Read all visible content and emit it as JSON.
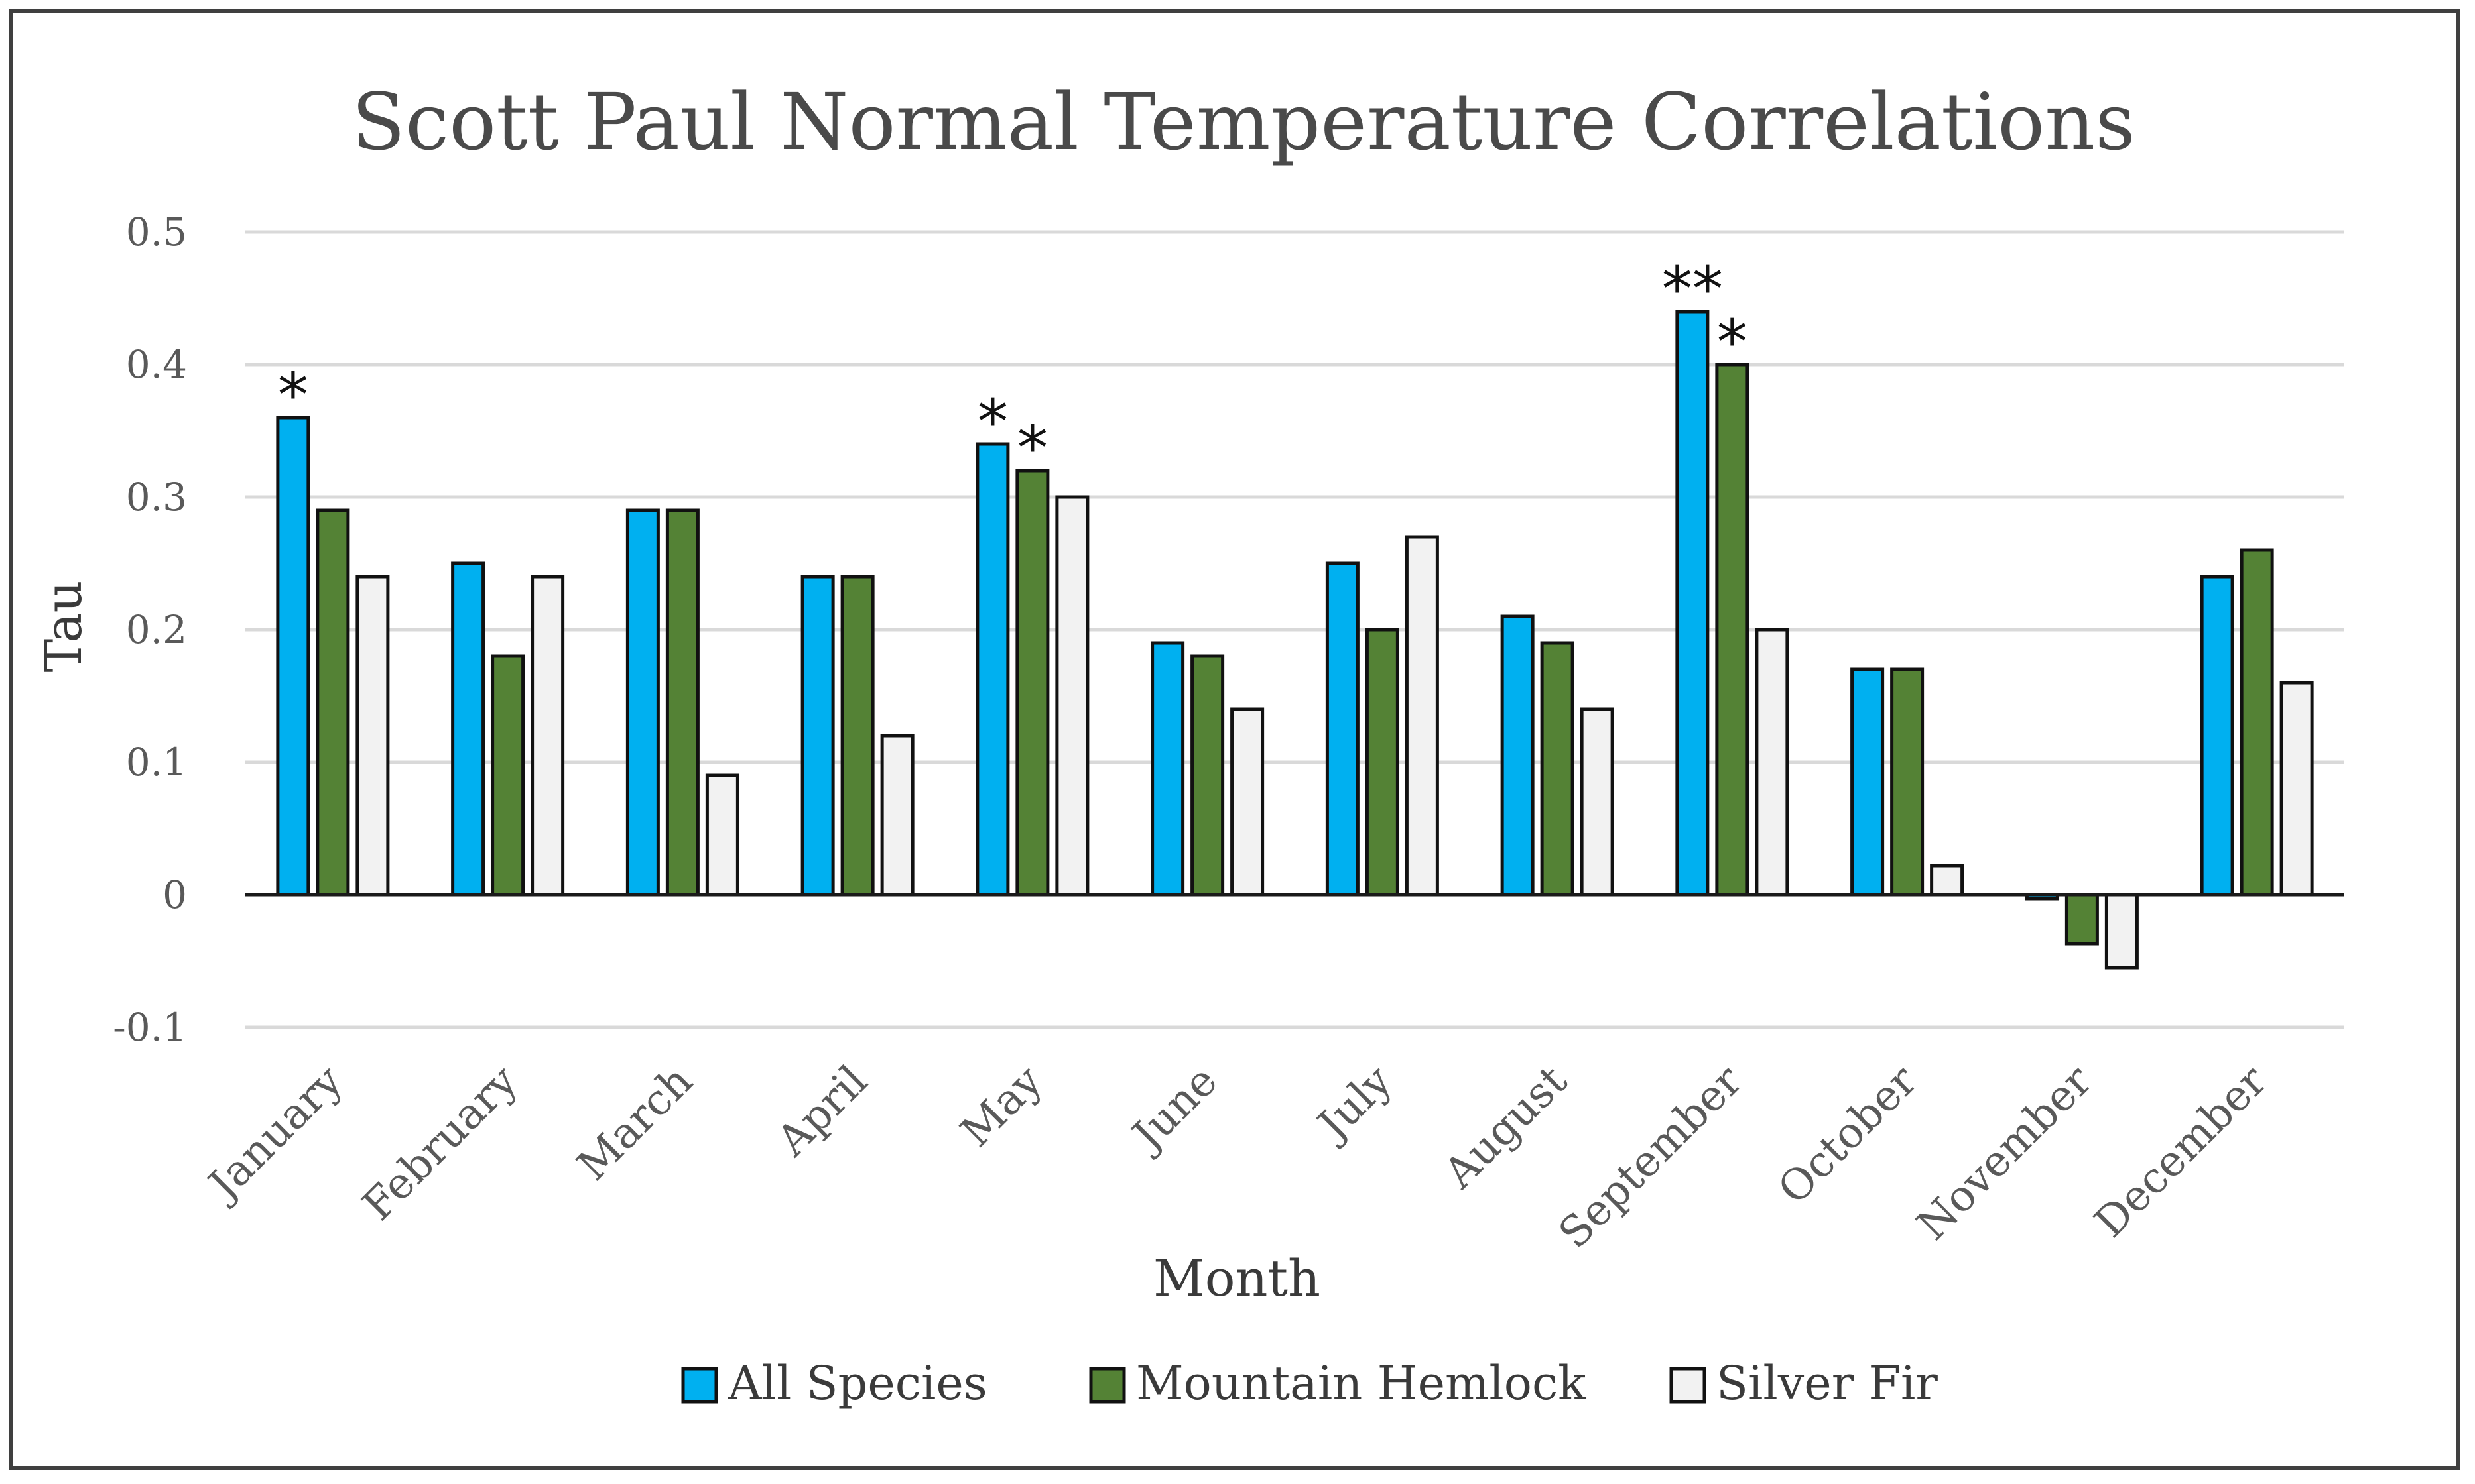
{
  "chart_data": {
    "type": "bar",
    "title": "Scott Paul Normal Temperature Correlations",
    "xlabel": "Month",
    "ylabel": "Tau",
    "ylim": [
      -0.1,
      0.5
    ],
    "yticks": [
      {
        "value": 0.5,
        "label": "0.5"
      },
      {
        "value": 0.4,
        "label": "0.4"
      },
      {
        "value": 0.3,
        "label": "0.3"
      },
      {
        "value": 0.2,
        "label": "0.2"
      },
      {
        "value": 0.1,
        "label": "0.1"
      },
      {
        "value": 0,
        "label": "0"
      },
      {
        "value": -0.1,
        "label": "-0.1"
      }
    ],
    "grid": true,
    "legend_position": "bottom",
    "categories": [
      "January",
      "February",
      "March",
      "April",
      "May",
      "June",
      "July",
      "August",
      "September",
      "October",
      "November",
      "December"
    ],
    "series": [
      {
        "name": "All Species",
        "color": "#00b0f0",
        "values": [
          0.36,
          0.25,
          0.29,
          0.24,
          0.34,
          0.19,
          0.25,
          0.21,
          0.44,
          0.17,
          -0.003,
          0.24
        ],
        "significance": [
          "*",
          "",
          "",
          "",
          "*",
          "",
          "",
          "",
          "**",
          "",
          "",
          ""
        ]
      },
      {
        "name": "Mountain Hemlock",
        "color": "#548235",
        "values": [
          0.29,
          0.18,
          0.29,
          0.24,
          0.32,
          0.18,
          0.2,
          0.19,
          0.4,
          0.17,
          -0.037,
          0.26
        ],
        "significance": [
          "",
          "",
          "",
          "",
          "*",
          "",
          "",
          "",
          "*",
          "",
          "",
          ""
        ]
      },
      {
        "name": "Silver Fir",
        "color": "#f2f2f2",
        "values": [
          0.24,
          0.24,
          0.09,
          0.12,
          0.3,
          0.14,
          0.27,
          0.14,
          0.2,
          0.022,
          -0.055,
          0.16
        ],
        "significance": [
          "",
          "",
          "",
          "",
          "",
          "",
          "",
          "",
          "",
          "",
          "",
          ""
        ]
      }
    ]
  }
}
